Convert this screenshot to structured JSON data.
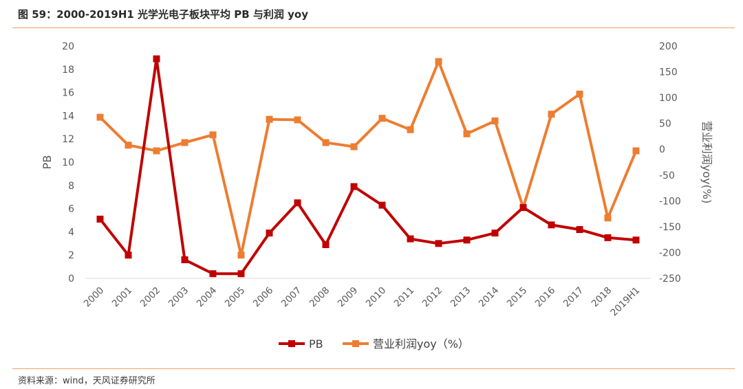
{
  "header": {
    "title": "图 59：2000-2019H1 光学光电子板块平均 PB 与利润 yoy"
  },
  "footer": {
    "source": "资料来源：wind，天风证券研究所"
  },
  "chart_data": {
    "type": "line",
    "x": [
      "2000",
      "2001",
      "2002",
      "2003",
      "2004",
      "2005",
      "2006",
      "2007",
      "2008",
      "2009",
      "2010",
      "2011",
      "2012",
      "2013",
      "2014",
      "2015",
      "2016",
      "2017",
      "2018",
      "2019H1"
    ],
    "ylabel": "PB",
    "y2label": "营业利润yoy(%)",
    "ylim": [
      0,
      20
    ],
    "y2lim": [
      -250,
      200
    ],
    "yticks": [
      0,
      2,
      4,
      6,
      8,
      10,
      12,
      14,
      16,
      18,
      20
    ],
    "y2ticks": [
      -250,
      -200,
      -150,
      -100,
      -50,
      0,
      50,
      100,
      150,
      200
    ],
    "grid": false,
    "legend_position": "bottom-center",
    "series": [
      {
        "name": "PB",
        "axis": "left",
        "color": "#c00000",
        "values": [
          5.1,
          2.0,
          18.9,
          1.6,
          0.4,
          0.4,
          3.9,
          6.5,
          2.9,
          7.9,
          6.3,
          3.4,
          3.0,
          3.3,
          3.9,
          6.1,
          4.6,
          4.2,
          3.5,
          3.3
        ]
      },
      {
        "name": "营业利润yoy（%）",
        "axis": "right",
        "color": "#ed7d31",
        "values": [
          62,
          8,
          -3,
          13,
          28,
          -205,
          58,
          57,
          13,
          5,
          60,
          38,
          170,
          30,
          55,
          -113,
          68,
          107,
          -133,
          -3
        ]
      }
    ]
  }
}
